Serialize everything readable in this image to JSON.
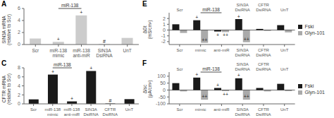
{
  "chart_data": [
    {
      "type": "bar",
      "title": "A",
      "ylabel": "SIN3A mRNA\n(relative to Scr)",
      "categories": [
        "Scr",
        "miR-138\nmimic",
        "miR-138\nanti-miR",
        "SIN3A\nDsiRNA",
        "UnT"
      ],
      "series": [
        {
          "color": "#cccccc",
          "values": [
            1.0,
            0.45,
            4.85,
            0.08,
            1.1
          ],
          "annotations": [
            null,
            "+",
            "+",
            "#",
            null
          ]
        }
      ],
      "annotations": [
        {
          "text": "miR-138",
          "categories": [
            "miR-138\nmimic",
            "miR-138\nanti-miR"
          ]
        }
      ],
      "ylim": [
        0,
        6
      ],
      "yticks": [
        0,
        2,
        4,
        6
      ]
    },
    {
      "type": "bar",
      "title": "C",
      "ylabel": "CFTR mRNA\n(relative to Scr)",
      "categories": [
        "Scr",
        "miR-138\nmimic",
        "miR-138\nanti-miR",
        "SIN3A\nDsiRNA",
        "CFTR\nDsiRNA",
        "UnT"
      ],
      "series": [
        {
          "color": "#1a1a1a",
          "values": [
            1.0,
            6.5,
            0.55,
            7.3,
            0.08,
            1.05
          ],
          "annotations": [
            null,
            "+",
            "+",
            "+",
            "#",
            null
          ]
        }
      ],
      "annotations": [
        {
          "text": "miR-138",
          "categories": [
            "miR-138\nmimic",
            "miR-138\nanti-miR"
          ]
        }
      ],
      "ylim": [
        0,
        8
      ],
      "yticks": [
        0,
        2,
        4,
        6,
        8
      ]
    },
    {
      "type": "bar",
      "title": "E",
      "ylabel": "ΔGt\n(mS/cm²)",
      "categories": [
        "Scr",
        "mimic",
        "anti-miR",
        "SIN3A\nDsiRNA",
        "CFTR\nDsiRNA",
        "UnT"
      ],
      "series": [
        {
          "name": "Fski",
          "color": "#1a1a1a",
          "values": [
            1.0,
            1.7,
            -0.25,
            1.9,
            0.2,
            0.85
          ],
          "annotations": [
            null,
            "+",
            "+",
            "+",
            null,
            null
          ]
        },
        {
          "name": "Glyn-101",
          "color": "#aaaaaa",
          "values": [
            -0.5,
            -2.2,
            -0.35,
            -2.1,
            -0.15,
            -0.4
          ],
          "annotations": [
            null,
            "++",
            "++",
            "++",
            null,
            null
          ]
        }
      ],
      "annotations": [
        {
          "text": "Scr",
          "categories": [
            "Scr"
          ]
        },
        {
          "text": "miR-138",
          "categories": [
            "mimic",
            "anti-miR"
          ]
        },
        {
          "text": "SIN3A\nDsiRNA",
          "categories": [
            "SIN3A\nDsiRNA"
          ]
        },
        {
          "text": "CFTR\nDsiRNA",
          "categories": [
            "CFTR\nDsiRNA"
          ]
        },
        {
          "text": "UnT",
          "categories": [
            "UnT"
          ]
        }
      ],
      "ylim": [
        -2.5,
        3.0
      ],
      "yticks": [
        -2,
        -1,
        0,
        1,
        2
      ],
      "legend": "right"
    },
    {
      "type": "bar",
      "title": "F",
      "ylabel": "ΔIsc\n(μA/cm²)",
      "categories": [
        "Scr",
        "mimic",
        "anti-miR",
        "SIN3A\nDsiRNA",
        "CFTR\nDsiRNA",
        "UnT"
      ],
      "series": [
        {
          "name": "Fski",
          "color": "#1a1a1a",
          "values": [
            50,
            90,
            15,
            85,
            15,
            45
          ],
          "annotations": [
            null,
            "+",
            "+",
            "+",
            null,
            null
          ]
        },
        {
          "name": "Glyn-101",
          "color": "#aaaaaa",
          "values": [
            -10,
            -70,
            -8,
            -70,
            -10,
            -8
          ],
          "annotations": [
            null,
            "++",
            "++",
            "++",
            null,
            null
          ]
        }
      ],
      "annotations": [
        {
          "text": "Scr",
          "categories": [
            "Scr"
          ]
        },
        {
          "text": "miR-138",
          "categories": [
            "mimic",
            "anti-miR"
          ]
        },
        {
          "text": "SIN3A\nDsiRNA",
          "categories": [
            "SIN3A\nDsiRNA"
          ]
        },
        {
          "text": "CFTR\nDsiRNA",
          "categories": [
            "CFTR\nDsiRNA"
          ]
        },
        {
          "text": "UnT",
          "categories": [
            "UnT"
          ]
        }
      ],
      "ylim": [
        -100,
        130
      ],
      "yticks": [
        -100,
        -50,
        0,
        50,
        100
      ],
      "legend": "right"
    }
  ]
}
